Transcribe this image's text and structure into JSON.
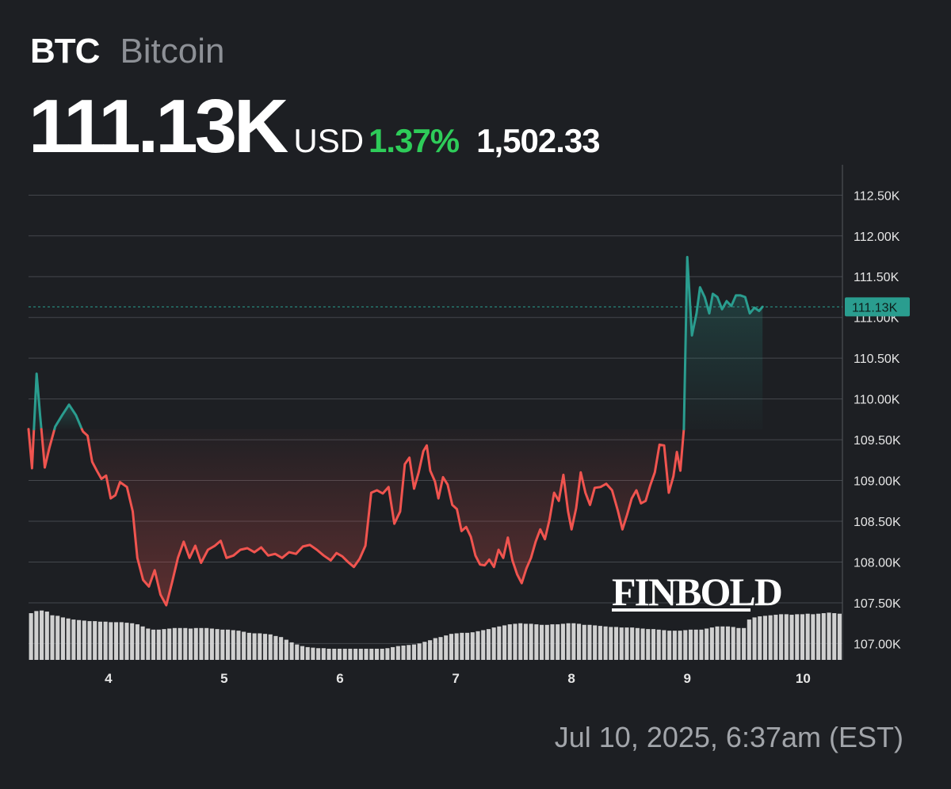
{
  "header": {
    "ticker": "BTC",
    "name": "Bitcoin"
  },
  "quote": {
    "price": "111.13K",
    "currency": "USD",
    "change_pct": "1.37%",
    "change_abs": "1,502.33"
  },
  "timestamp": "Jul 10, 2025, 6:37am (EST)",
  "watermark": "FINBOLD",
  "colors": {
    "background": "#1d1f23",
    "down": "#f0544f",
    "up": "#2a9d8f",
    "positive_text": "#2ecc59",
    "volume": "#e0e0e0"
  },
  "chart_data": {
    "type": "line",
    "title": "",
    "xlabel": "",
    "ylabel": "",
    "reference_price": 109630,
    "last_value_label": "111.13K",
    "last_value": 111130,
    "ylim": [
      106800,
      112950
    ],
    "y_ticks": [
      {
        "value": 112500,
        "label": "112.50K"
      },
      {
        "value": 112000,
        "label": "112.00K"
      },
      {
        "value": 111500,
        "label": "111.50K"
      },
      {
        "value": 111000,
        "label": "111.00K"
      },
      {
        "value": 110500,
        "label": "110.50K"
      },
      {
        "value": 110000,
        "label": "110.00K"
      },
      {
        "value": 109500,
        "label": "109.50K"
      },
      {
        "value": 109000,
        "label": "109.00K"
      },
      {
        "value": 108500,
        "label": "108.50K"
      },
      {
        "value": 108000,
        "label": "108.00K"
      },
      {
        "value": 107500,
        "label": "107.50K"
      },
      {
        "value": 107000,
        "label": "107.00K"
      }
    ],
    "x_ticks": [
      {
        "value": 4,
        "label": "4"
      },
      {
        "value": 5,
        "label": "5"
      },
      {
        "value": 6,
        "label": "6"
      },
      {
        "value": 7,
        "label": "7"
      },
      {
        "value": 8,
        "label": "8"
      },
      {
        "value": 9,
        "label": "9"
      },
      {
        "value": 10,
        "label": "10"
      }
    ],
    "xlim": [
      3.31,
      10.34
    ],
    "price": [
      [
        3.31,
        109630
      ],
      [
        3.34,
        109150
      ],
      [
        3.38,
        110310
      ],
      [
        3.41,
        109800
      ],
      [
        3.45,
        109160
      ],
      [
        3.49,
        109400
      ],
      [
        3.54,
        109660
      ],
      [
        3.6,
        109800
      ],
      [
        3.66,
        109930
      ],
      [
        3.72,
        109800
      ],
      [
        3.78,
        109600
      ],
      [
        3.82,
        109550
      ],
      [
        3.86,
        109230
      ],
      [
        3.9,
        109120
      ],
      [
        3.94,
        109020
      ],
      [
        3.98,
        109060
      ],
      [
        4.02,
        108780
      ],
      [
        4.06,
        108820
      ],
      [
        4.1,
        108980
      ],
      [
        4.16,
        108920
      ],
      [
        4.21,
        108620
      ],
      [
        4.25,
        108050
      ],
      [
        4.3,
        107780
      ],
      [
        4.35,
        107700
      ],
      [
        4.4,
        107900
      ],
      [
        4.45,
        107600
      ],
      [
        4.5,
        107470
      ],
      [
        4.55,
        107750
      ],
      [
        4.6,
        108050
      ],
      [
        4.65,
        108250
      ],
      [
        4.7,
        108050
      ],
      [
        4.75,
        108200
      ],
      [
        4.8,
        107990
      ],
      [
        4.86,
        108150
      ],
      [
        4.92,
        108200
      ],
      [
        4.97,
        108260
      ],
      [
        5.02,
        108050
      ],
      [
        5.08,
        108080
      ],
      [
        5.14,
        108150
      ],
      [
        5.2,
        108170
      ],
      [
        5.26,
        108120
      ],
      [
        5.32,
        108180
      ],
      [
        5.38,
        108080
      ],
      [
        5.44,
        108100
      ],
      [
        5.5,
        108050
      ],
      [
        5.56,
        108120
      ],
      [
        5.62,
        108100
      ],
      [
        5.68,
        108190
      ],
      [
        5.74,
        108210
      ],
      [
        5.8,
        108150
      ],
      [
        5.86,
        108080
      ],
      [
        5.92,
        108020
      ],
      [
        5.97,
        108110
      ],
      [
        6.02,
        108070
      ],
      [
        6.07,
        108000
      ],
      [
        6.12,
        107940
      ],
      [
        6.17,
        108040
      ],
      [
        6.22,
        108200
      ],
      [
        6.27,
        108850
      ],
      [
        6.32,
        108880
      ],
      [
        6.37,
        108840
      ],
      [
        6.42,
        108920
      ],
      [
        6.47,
        108470
      ],
      [
        6.52,
        108620
      ],
      [
        6.56,
        109200
      ],
      [
        6.6,
        109280
      ],
      [
        6.64,
        108900
      ],
      [
        6.68,
        109100
      ],
      [
        6.72,
        109360
      ],
      [
        6.75,
        109430
      ],
      [
        6.78,
        109120
      ],
      [
        6.82,
        108990
      ],
      [
        6.85,
        108780
      ],
      [
        6.89,
        109040
      ],
      [
        6.93,
        108950
      ],
      [
        6.97,
        108700
      ],
      [
        7.01,
        108650
      ],
      [
        7.05,
        108380
      ],
      [
        7.09,
        108430
      ],
      [
        7.13,
        108310
      ],
      [
        7.17,
        108080
      ],
      [
        7.21,
        107970
      ],
      [
        7.25,
        107960
      ],
      [
        7.29,
        108030
      ],
      [
        7.33,
        107940
      ],
      [
        7.37,
        108150
      ],
      [
        7.41,
        108050
      ],
      [
        7.45,
        108300
      ],
      [
        7.49,
        108020
      ],
      [
        7.53,
        107850
      ],
      [
        7.57,
        107740
      ],
      [
        7.61,
        107920
      ],
      [
        7.65,
        108050
      ],
      [
        7.69,
        108250
      ],
      [
        7.73,
        108400
      ],
      [
        7.77,
        108280
      ],
      [
        7.81,
        108520
      ],
      [
        7.85,
        108850
      ],
      [
        7.89,
        108750
      ],
      [
        7.93,
        109070
      ],
      [
        7.97,
        108620
      ],
      [
        8.0,
        108400
      ],
      [
        8.04,
        108660
      ],
      [
        8.08,
        109100
      ],
      [
        8.12,
        108850
      ],
      [
        8.16,
        108700
      ],
      [
        8.2,
        108910
      ],
      [
        8.25,
        108920
      ],
      [
        8.3,
        108960
      ],
      [
        8.35,
        108880
      ],
      [
        8.4,
        108630
      ],
      [
        8.44,
        108400
      ],
      [
        8.48,
        108580
      ],
      [
        8.52,
        108780
      ],
      [
        8.56,
        108880
      ],
      [
        8.6,
        108720
      ],
      [
        8.64,
        108750
      ],
      [
        8.68,
        108940
      ],
      [
        8.72,
        109100
      ],
      [
        8.76,
        109440
      ],
      [
        8.8,
        109430
      ],
      [
        8.84,
        108850
      ],
      [
        8.88,
        109050
      ],
      [
        8.91,
        109350
      ],
      [
        8.94,
        109120
      ],
      [
        8.97,
        109630
      ],
      [
        9.0,
        111740
      ],
      [
        9.04,
        110780
      ],
      [
        9.08,
        111050
      ],
      [
        9.11,
        111370
      ],
      [
        9.15,
        111250
      ],
      [
        9.19,
        111050
      ],
      [
        9.22,
        111290
      ],
      [
        9.26,
        111250
      ],
      [
        9.3,
        111100
      ],
      [
        9.34,
        111200
      ],
      [
        9.38,
        111140
      ],
      [
        9.42,
        111270
      ],
      [
        9.46,
        111270
      ],
      [
        9.5,
        111250
      ],
      [
        9.54,
        111050
      ],
      [
        9.58,
        111120
      ],
      [
        9.62,
        111080
      ],
      [
        9.65,
        111130
      ]
    ],
    "volume_range": [
      0,
      1
    ],
    "volume": [
      0.88,
      0.92,
      0.93,
      0.91,
      0.84,
      0.83,
      0.8,
      0.78,
      0.76,
      0.75,
      0.74,
      0.73,
      0.73,
      0.72,
      0.72,
      0.71,
      0.71,
      0.71,
      0.7,
      0.69,
      0.67,
      0.63,
      0.59,
      0.57,
      0.57,
      0.58,
      0.59,
      0.6,
      0.6,
      0.6,
      0.59,
      0.6,
      0.6,
      0.6,
      0.59,
      0.58,
      0.57,
      0.57,
      0.56,
      0.55,
      0.53,
      0.51,
      0.5,
      0.5,
      0.49,
      0.48,
      0.45,
      0.43,
      0.38,
      0.33,
      0.29,
      0.26,
      0.24,
      0.23,
      0.22,
      0.22,
      0.21,
      0.21,
      0.21,
      0.21,
      0.21,
      0.21,
      0.21,
      0.21,
      0.21,
      0.21,
      0.21,
      0.22,
      0.24,
      0.26,
      0.27,
      0.28,
      0.29,
      0.31,
      0.34,
      0.37,
      0.41,
      0.43,
      0.46,
      0.49,
      0.5,
      0.51,
      0.51,
      0.52,
      0.54,
      0.56,
      0.58,
      0.61,
      0.63,
      0.65,
      0.67,
      0.68,
      0.69,
      0.68,
      0.68,
      0.67,
      0.66,
      0.66,
      0.67,
      0.67,
      0.68,
      0.69,
      0.69,
      0.68,
      0.66,
      0.66,
      0.65,
      0.64,
      0.63,
      0.62,
      0.62,
      0.61,
      0.61,
      0.61,
      0.6,
      0.59,
      0.58,
      0.58,
      0.57,
      0.56,
      0.55,
      0.55,
      0.55,
      0.56,
      0.57,
      0.57,
      0.57,
      0.59,
      0.61,
      0.63,
      0.63,
      0.63,
      0.62,
      0.6,
      0.6,
      0.76,
      0.8,
      0.82,
      0.83,
      0.84,
      0.85,
      0.86,
      0.86,
      0.85,
      0.86,
      0.86,
      0.87,
      0.86,
      0.87,
      0.88,
      0.89,
      0.88,
      0.87
    ]
  }
}
